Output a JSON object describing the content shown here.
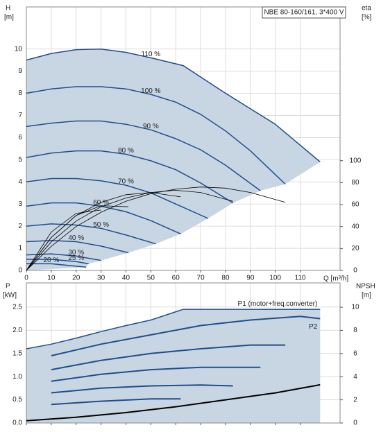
{
  "chart_data": [
    {
      "type": "line",
      "title": "NBE 80-160/161, 3*400 V",
      "y_label": "H",
      "y_unit": "[m]",
      "y2_label": "eta",
      "y2_unit": "[%]",
      "x_label": "Q [m³/h]",
      "xlim": [
        0,
        126
      ],
      "xticks": [
        0,
        10,
        20,
        30,
        40,
        50,
        60,
        70,
        80,
        90,
        100,
        110
      ],
      "ylim": [
        0,
        11.9
      ],
      "yticks": [
        0,
        1,
        2,
        3,
        4,
        5,
        6,
        7,
        8,
        9,
        10
      ],
      "y2lim": [
        0,
        240
      ],
      "y2ticks": [
        0,
        20,
        40,
        60,
        80,
        100
      ],
      "grid": true,
      "shade_color": "#c8d5e3",
      "series": [
        {
          "name": "110 %",
          "color": "#1f4e8c",
          "x": [
            0,
            10,
            20,
            30,
            40,
            50,
            63,
            80,
            100,
            118
          ],
          "values": [
            9.5,
            9.8,
            9.97,
            10.0,
            9.85,
            9.6,
            9.25,
            8.0,
            6.6,
            4.9
          ]
        },
        {
          "name": "100 %",
          "color": "#1f4e8c",
          "x": [
            0,
            10,
            20,
            30,
            40,
            50,
            60,
            70,
            80,
            90,
            104
          ],
          "values": [
            8.0,
            8.2,
            8.3,
            8.3,
            8.2,
            7.95,
            7.6,
            7.05,
            6.3,
            5.4,
            3.9
          ]
        },
        {
          "name": "90 %",
          "color": "#1f4e8c",
          "x": [
            0,
            10,
            20,
            30,
            40,
            50,
            60,
            70,
            80,
            94
          ],
          "values": [
            6.5,
            6.65,
            6.75,
            6.75,
            6.6,
            6.35,
            5.95,
            5.45,
            4.75,
            3.6
          ]
        },
        {
          "name": "80 %",
          "color": "#1f4e8c",
          "x": [
            0,
            10,
            20,
            30,
            40,
            50,
            60,
            70,
            83
          ],
          "values": [
            5.1,
            5.3,
            5.4,
            5.4,
            5.25,
            4.95,
            4.55,
            3.95,
            3.05
          ]
        },
        {
          "name": "70 %",
          "color": "#1f4e8c",
          "x": [
            0,
            10,
            20,
            30,
            40,
            50,
            60,
            73
          ],
          "values": [
            4.0,
            4.15,
            4.15,
            4.05,
            3.85,
            3.5,
            3.0,
            2.35
          ]
        },
        {
          "name": "60 %",
          "color": "#1f4e8c",
          "x": [
            0,
            10,
            20,
            30,
            40,
            50,
            62
          ],
          "values": [
            2.9,
            3.05,
            3.05,
            2.9,
            2.65,
            2.25,
            1.65
          ]
        },
        {
          "name": "50 %",
          "color": "#1f4e8c",
          "x": [
            0,
            10,
            20,
            30,
            40,
            52
          ],
          "values": [
            2.0,
            2.1,
            2.05,
            1.9,
            1.6,
            1.2
          ]
        },
        {
          "name": "40 %",
          "color": "#1f4e8c",
          "x": [
            0,
            10,
            20,
            30,
            41
          ],
          "values": [
            1.3,
            1.35,
            1.3,
            1.1,
            0.8
          ]
        },
        {
          "name": "30 %",
          "color": "#1f4e8c",
          "x": [
            0,
            10,
            20,
            30
          ],
          "values": [
            0.7,
            0.75,
            0.65,
            0.45
          ]
        },
        {
          "name": "25 %",
          "color": "#1f4e8c",
          "x": [
            0,
            10,
            20,
            25
          ],
          "values": [
            0.5,
            0.5,
            0.4,
            0.3
          ]
        },
        {
          "name": "20 %",
          "color": "#1f4e8c",
          "x": [
            0,
            10,
            24
          ],
          "values": [
            0.3,
            0.3,
            0.15
          ]
        },
        {
          "axis": "y2",
          "color": "#000000",
          "x": [
            0,
            10,
            20,
            30,
            40,
            50,
            60,
            70,
            80,
            90,
            104
          ],
          "values": [
            0,
            22,
            40,
            53,
            63,
            70,
            74,
            76,
            75,
            71,
            62
          ]
        },
        {
          "axis": "y2",
          "color": "#000000",
          "x": [
            0,
            10,
            20,
            30,
            40,
            50,
            60,
            70,
            83
          ],
          "values": [
            0,
            26,
            45,
            58,
            66,
            71,
            73,
            71,
            63
          ]
        },
        {
          "axis": "y2",
          "color": "#000000",
          "x": [
            0,
            10,
            20,
            30,
            40,
            50,
            62
          ],
          "values": [
            0,
            30,
            50,
            62,
            69,
            71,
            67
          ]
        },
        {
          "axis": "y2",
          "color": "#000000",
          "x": [
            0,
            10,
            20,
            30,
            41
          ],
          "values": [
            0,
            30,
            50,
            59,
            58
          ]
        },
        {
          "axis": "y2",
          "color": "#000000",
          "x": [
            0,
            10,
            20,
            30
          ],
          "values": [
            0,
            35,
            52,
            55
          ]
        }
      ]
    },
    {
      "type": "line",
      "y_label": "P",
      "y_unit": "[kW]",
      "y2_label": "NPSH",
      "y2_unit": "[m]",
      "xlim": [
        0,
        126
      ],
      "xticks": [
        0,
        10,
        20,
        30,
        40,
        50,
        60,
        70,
        80,
        90,
        100,
        110
      ],
      "ylim": [
        0,
        3.02
      ],
      "yticks": [
        {
          "value": 0,
          "label": "0.0"
        },
        0.5,
        {
          "value": 1,
          "label": "1.0"
        },
        1.5,
        {
          "value": 2,
          "label": "2.0"
        },
        2.5
      ],
      "y2lim": [
        0,
        12.1
      ],
      "y2ticks": [
        0,
        2,
        4,
        6,
        8,
        10
      ],
      "grid": true,
      "shade_color": "#c8d5e3",
      "series": [
        {
          "name": "P1 (motor+freq.converter)",
          "color": "#1f4e8c",
          "x": [
            0,
            10,
            20,
            30,
            40,
            50,
            63,
            80,
            100,
            118
          ],
          "values": [
            1.6,
            1.7,
            1.83,
            1.97,
            2.1,
            2.22,
            2.45,
            2.45,
            2.45,
            2.45
          ]
        },
        {
          "name": "P2",
          "color": "#1f4e8c",
          "x": [
            10,
            30,
            50,
            70,
            90,
            110,
            118
          ],
          "values": [
            1.45,
            1.7,
            1.9,
            2.1,
            2.22,
            2.3,
            2.25
          ]
        },
        {
          "color": "#1f4e8c",
          "x": [
            10,
            30,
            50,
            70,
            90,
            104
          ],
          "values": [
            1.15,
            1.35,
            1.5,
            1.6,
            1.68,
            1.68
          ]
        },
        {
          "color": "#1f4e8c",
          "x": [
            10,
            30,
            50,
            70,
            94
          ],
          "values": [
            0.9,
            1.05,
            1.15,
            1.2,
            1.2
          ]
        },
        {
          "color": "#1f4e8c",
          "x": [
            10,
            30,
            50,
            70,
            83
          ],
          "values": [
            0.65,
            0.75,
            0.8,
            0.82,
            0.8
          ]
        },
        {
          "color": "#1f4e8c",
          "x": [
            10,
            30,
            50,
            62
          ],
          "values": [
            0.4,
            0.47,
            0.52,
            0.52
          ]
        },
        {
          "axis": "y2",
          "color": "#000000",
          "x": [
            0,
            20,
            40,
            60,
            80,
            100,
            118
          ],
          "values": [
            0.2,
            0.5,
            0.9,
            1.4,
            2.0,
            2.6,
            3.3
          ]
        }
      ]
    }
  ]
}
